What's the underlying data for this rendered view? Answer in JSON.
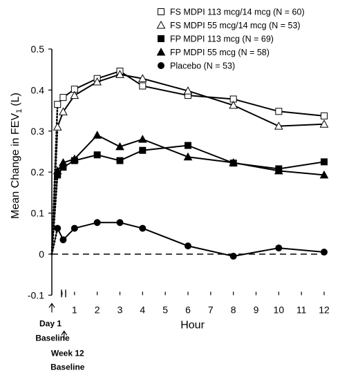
{
  "chart_data": {
    "type": "line",
    "xlabel": "Hour",
    "ylabel": "Mean Change in FEV",
    "ylabel_subscript": "1",
    "ylabel_unit": "(L)",
    "xlim": [
      0,
      12
    ],
    "ylim": [
      -0.1,
      0.5
    ],
    "x_ticks": [
      0,
      1,
      2,
      3,
      4,
      5,
      6,
      7,
      8,
      9,
      10,
      11,
      12
    ],
    "y_ticks": [
      -0.1,
      0,
      0.1,
      0.2,
      0.3,
      0.4,
      0.5
    ],
    "y_tick_labels": [
      "-0.1",
      "0",
      "0.1",
      "0.2",
      "0.3",
      "0.4",
      "0.5"
    ],
    "grid": false,
    "reference_line_y": 0,
    "legend_placement": "top-right",
    "baseline_labels": {
      "day1": [
        "Day 1",
        "Baseline"
      ],
      "week12": [
        "Week 12",
        "Baseline"
      ]
    },
    "series": [
      {
        "name": "FS MDPI 113 mcg/14 mcg (N = 60)",
        "marker": "open-square",
        "x": [
          0.25,
          0.5,
          1,
          2,
          3,
          4,
          6,
          8,
          10,
          12
        ],
        "y": [
          0.365,
          0.382,
          0.402,
          0.428,
          0.446,
          0.41,
          0.387,
          0.378,
          0.348,
          0.337
        ]
      },
      {
        "name": "FS MDPI 55 mcg/14 mcg (N = 53)",
        "marker": "open-triangle",
        "x": [
          0.25,
          0.5,
          1,
          2,
          3,
          4,
          6,
          8,
          10,
          12
        ],
        "y": [
          0.31,
          0.347,
          0.387,
          0.42,
          0.438,
          0.428,
          0.398,
          0.363,
          0.312,
          0.317
        ]
      },
      {
        "name": "FP MDPI 113 mcg (N = 69)",
        "marker": "filled-square",
        "x": [
          0.25,
          0.5,
          1,
          2,
          3,
          4,
          6,
          8,
          10,
          12
        ],
        "y": [
          0.193,
          0.212,
          0.228,
          0.242,
          0.228,
          0.253,
          0.265,
          0.222,
          0.208,
          0.225
        ]
      },
      {
        "name": "FP MDPI 55 mcg (N = 58)",
        "marker": "filled-triangle",
        "x": [
          0.25,
          0.5,
          1,
          2,
          3,
          4,
          6,
          8,
          10,
          12
        ],
        "y": [
          0.203,
          0.223,
          0.232,
          0.29,
          0.262,
          0.28,
          0.237,
          0.223,
          0.203,
          0.193
        ]
      },
      {
        "name": "Placebo (N = 53)",
        "marker": "filled-circle",
        "x": [
          0.25,
          0.5,
          1,
          2,
          3,
          4,
          6,
          8,
          10,
          12
        ],
        "y": [
          0.063,
          0.035,
          0.063,
          0.077,
          0.077,
          0.063,
          0.02,
          -0.005,
          0.015,
          0.005
        ]
      }
    ]
  }
}
